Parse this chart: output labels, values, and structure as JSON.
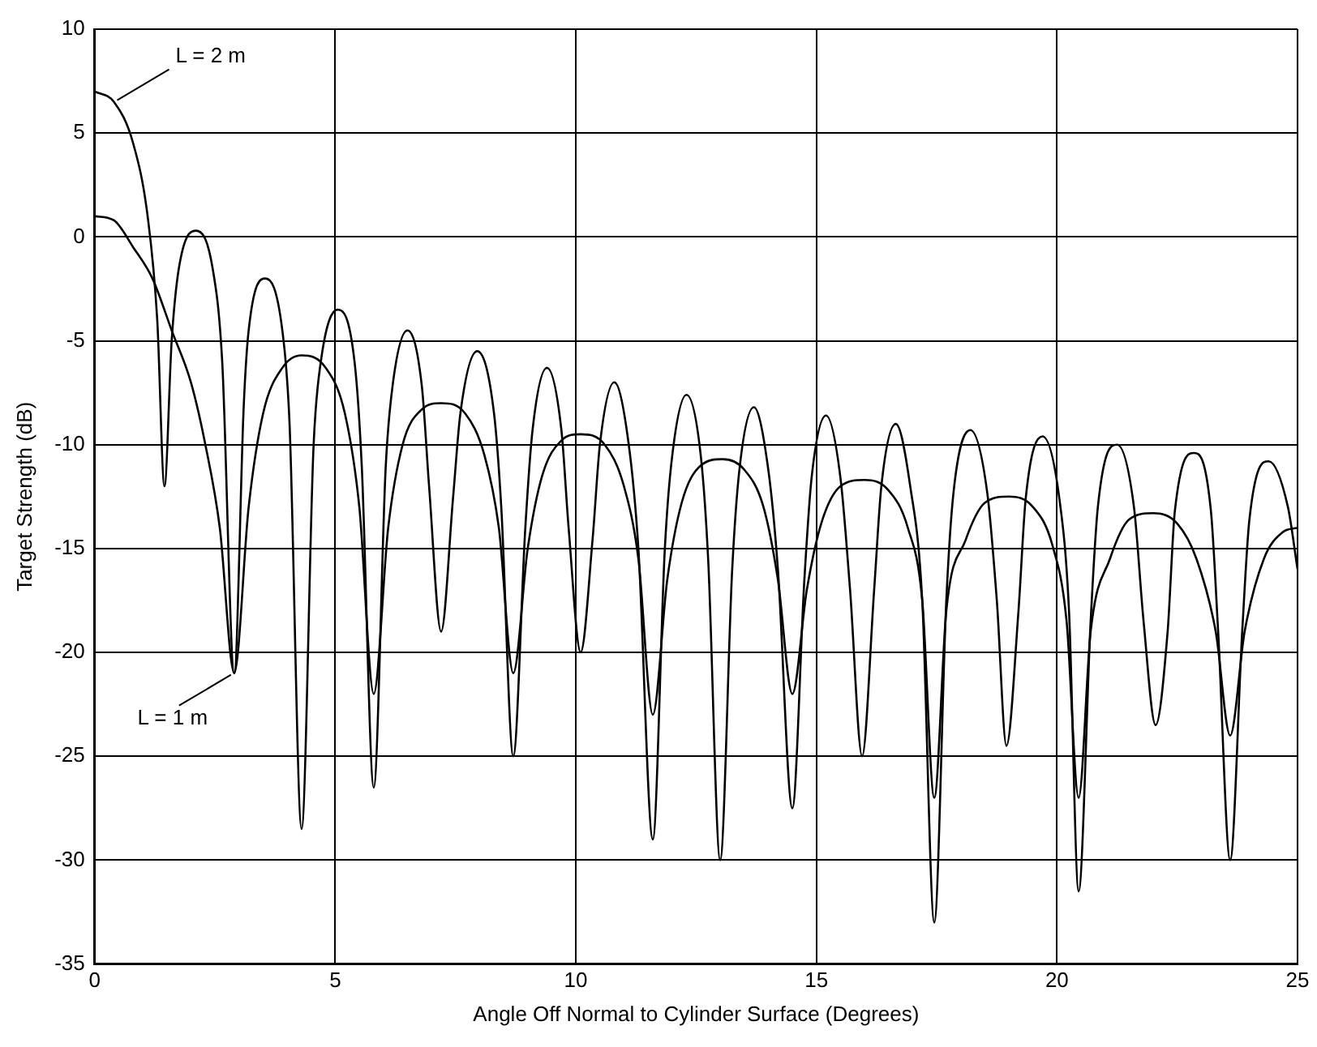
{
  "chart_data": {
    "type": "line",
    "xlabel": "Angle Off Normal to Cylinder Surface (Degrees)",
    "ylabel": "Target Strength (dB)",
    "xlim": [
      0,
      25
    ],
    "xticks": [
      0,
      5,
      10,
      15,
      20,
      25
    ],
    "ylim": [
      -35,
      10
    ],
    "yticks": [
      -35,
      -30,
      -25,
      -20,
      -15,
      -10,
      -5,
      0,
      5,
      10
    ],
    "grid": true,
    "marker": "none",
    "line_style": "solid",
    "series": [
      {
        "name": "L = 2 m",
        "color": "#000000",
        "x": [
          0,
          0.4,
          0.8,
          1.1,
          1.3,
          1.45,
          1.6,
          1.75,
          2.1,
          2.45,
          2.65,
          2.9,
          3.1,
          3.2,
          3.55,
          3.9,
          4.05,
          4.3,
          4.55,
          4.7,
          5.05,
          5.4,
          5.55,
          5.8,
          6.05,
          6.2,
          6.5,
          6.8,
          6.95,
          7.2,
          7.45,
          7.6,
          7.95,
          8.3,
          8.45,
          8.7,
          8.95,
          9.1,
          9.4,
          9.7,
          9.85,
          10.1,
          10.35,
          10.5,
          10.8,
          11.1,
          11.3,
          11.6,
          11.85,
          12.0,
          12.3,
          12.6,
          12.75,
          13.0,
          13.25,
          13.4,
          13.7,
          14.0,
          14.2,
          14.5,
          14.75,
          14.9,
          15.2,
          15.5,
          15.7,
          15.95,
          16.2,
          16.35,
          16.65,
          16.95,
          17.2,
          17.45,
          17.7,
          17.85,
          18.2,
          18.55,
          18.75,
          18.95,
          19.2,
          19.35,
          19.7,
          20.05,
          20.25,
          20.45,
          20.7,
          20.85,
          21.25,
          21.6,
          21.8,
          22.05,
          22.3,
          22.45,
          22.85,
          23.2,
          23.35,
          23.6,
          23.85,
          24.0,
          24.4,
          24.8,
          25
        ],
        "values": [
          7,
          6.5,
          4.5,
          1,
          -4,
          -12,
          -5,
          -1.5,
          0.3,
          -1.5,
          -6,
          -21,
          -8,
          -4.5,
          -2,
          -4.5,
          -9,
          -28.5,
          -10,
          -6,
          -3.5,
          -6,
          -11,
          -26.5,
          -11,
          -7,
          -4.5,
          -7.2,
          -12,
          -19,
          -12.5,
          -8.5,
          -5.5,
          -8.5,
          -13,
          -25,
          -14,
          -9.3,
          -6.3,
          -9.3,
          -14,
          -20,
          -14.5,
          -10,
          -7,
          -10,
          -15,
          -29,
          -15,
          -10.6,
          -7.6,
          -10.6,
          -15.5,
          -30,
          -16,
          -11.2,
          -8.2,
          -11.2,
          -16,
          -27.5,
          -16.5,
          -11.6,
          -8.6,
          -11.6,
          -17,
          -25,
          -17,
          -12,
          -9,
          -12,
          -17.5,
          -33,
          -17.5,
          -12.3,
          -9.3,
          -12.3,
          -17.5,
          -24.5,
          -18,
          -12.6,
          -9.6,
          -12.6,
          -18,
          -31.5,
          -18.5,
          -13,
          -10,
          -13,
          -18.5,
          -23.5,
          -19,
          -13.2,
          -10.4,
          -13.2,
          -19,
          -30,
          -19,
          -13.6,
          -10.8,
          -13,
          -16
        ]
      },
      {
        "name": "L = 1 m",
        "color": "#000000",
        "x": [
          0,
          0.4,
          0.8,
          1.2,
          1.6,
          2.0,
          2.3,
          2.6,
          2.9,
          3.2,
          3.5,
          3.9,
          4.3,
          4.8,
          5.2,
          5.5,
          5.8,
          6.1,
          6.4,
          6.8,
          7.2,
          7.7,
          8.1,
          8.4,
          8.7,
          9.0,
          9.3,
          9.7,
          10.1,
          10.6,
          11.0,
          11.3,
          11.6,
          11.9,
          12.2,
          12.6,
          13.05,
          13.5,
          13.9,
          14.2,
          14.5,
          14.8,
          15.1,
          15.5,
          16.0,
          16.5,
          16.9,
          17.2,
          17.45,
          17.7,
          18.1,
          18.5,
          19.0,
          19.5,
          19.9,
          20.2,
          20.45,
          20.7,
          21.1,
          21.5,
          22.0,
          22.5,
          22.9,
          23.3,
          23.6,
          23.9,
          24.3,
          24.7,
          25
        ],
        "values": [
          1,
          0.8,
          -0.5,
          -2,
          -4.5,
          -7,
          -10,
          -14,
          -21,
          -13,
          -8.5,
          -6.3,
          -5.7,
          -6.3,
          -8.5,
          -13,
          -22,
          -14,
          -10,
          -8.3,
          -8,
          -8.5,
          -10.5,
          -14,
          -21,
          -15,
          -11.5,
          -9.8,
          -9.5,
          -10,
          -12,
          -15.5,
          -23,
          -16.5,
          -12.8,
          -11,
          -10.7,
          -11.2,
          -13,
          -16.5,
          -22,
          -17,
          -13.8,
          -12,
          -11.7,
          -12.2,
          -14,
          -17.5,
          -27,
          -18,
          -14.6,
          -12.8,
          -12.5,
          -13,
          -14.8,
          -18.5,
          -27,
          -19,
          -15.5,
          -13.6,
          -13.3,
          -13.8,
          -15.5,
          -19,
          -24,
          -19,
          -15.5,
          -14.2,
          -14
        ]
      }
    ]
  }
}
